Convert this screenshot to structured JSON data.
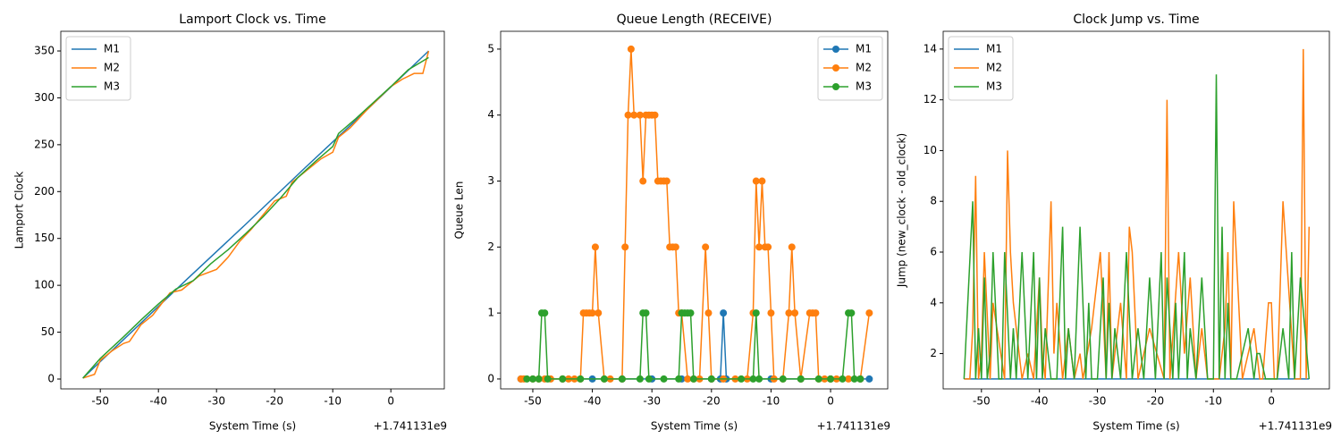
{
  "chart_data": [
    {
      "type": "line",
      "title": "Lamport Clock vs. Time",
      "xlabel": "System Time (s)",
      "ylabel": "Lamport Clock",
      "x_offset_label": "+1.741131e9",
      "xlim": [
        -56.8,
        9.2
      ],
      "ylim": [
        -10.5,
        371
      ],
      "xticks": [
        -50,
        -40,
        -30,
        -20,
        -10,
        0
      ],
      "yticks": [
        0,
        50,
        100,
        150,
        200,
        250,
        300,
        350
      ],
      "legend": "upper left",
      "series": [
        {
          "name": "M1",
          "color": "#1f77b4",
          "x": [
            -53,
            -45,
            -35,
            -25,
            -15,
            -5,
            6.5
          ],
          "values": [
            1,
            48,
            107,
            165,
            224,
            282,
            350
          ]
        },
        {
          "name": "M2",
          "color": "#ff7f0e",
          "x": [
            -53,
            -51,
            -50,
            -48,
            -46,
            -45,
            -43,
            -41,
            -38,
            -36,
            -33,
            -30,
            -28,
            -26,
            -24,
            -22,
            -20,
            -18,
            -17,
            -15,
            -12,
            -10,
            -9,
            -7,
            -4,
            0,
            2,
            4,
            5.5,
            6.5
          ],
          "values": [
            1,
            5,
            20,
            30,
            38,
            40,
            58,
            68,
            92,
            95,
            110,
            117,
            130,
            147,
            160,
            175,
            190,
            195,
            210,
            220,
            235,
            242,
            258,
            268,
            288,
            312,
            320,
            326,
            326,
            350
          ]
        },
        {
          "name": "M3",
          "color": "#2ca02c",
          "x": [
            -53,
            -50,
            -46,
            -43,
            -40,
            -37,
            -34,
            -31,
            -28,
            -25,
            -22,
            -19,
            -16,
            -13,
            -10,
            -9,
            -6,
            -3,
            0,
            3,
            6.5
          ],
          "values": [
            1,
            22,
            45,
            63,
            80,
            96,
            105,
            123,
            138,
            155,
            173,
            193,
            215,
            232,
            248,
            262,
            278,
            295,
            312,
            330,
            343
          ]
        }
      ]
    },
    {
      "type": "line",
      "marker": "o",
      "title": "Queue Length (RECEIVE)",
      "xlabel": "System Time (s)",
      "ylabel": "Queue Len",
      "x_offset_label": "+1.741131e9",
      "xlim": [
        -55.4,
        9.6
      ],
      "ylim": [
        -0.15,
        5.27
      ],
      "xticks": [
        -50,
        -40,
        -30,
        -20,
        -10,
        0
      ],
      "yticks": [
        0,
        1,
        2,
        3,
        4,
        5
      ],
      "legend": "upper right",
      "series": [
        {
          "name": "M1",
          "color": "#1f77b4",
          "x": [
            -52,
            -45,
            -40,
            -35,
            -30,
            -25,
            -20,
            -18.5,
            -18,
            -17.5,
            -10,
            -5,
            0,
            5,
            6.5
          ],
          "values": [
            0,
            0,
            0,
            0,
            0,
            0,
            0,
            0,
            1,
            0,
            0,
            0,
            0,
            0,
            0
          ]
        },
        {
          "name": "M2",
          "color": "#ff7f0e",
          "x": [
            -52,
            -51.5,
            -50,
            -49,
            -48,
            -47,
            -45,
            -44,
            -43,
            -42,
            -41.5,
            -41,
            -40.5,
            -40,
            -39.5,
            -39,
            -38,
            -37,
            -35,
            -34.5,
            -34,
            -33.5,
            -33,
            -32,
            -31.5,
            -31,
            -30.5,
            -30,
            -29.5,
            -29,
            -28.5,
            -28,
            -27.5,
            -27,
            -26.5,
            -26,
            -25.5,
            -25,
            -24,
            -23,
            -22,
            -21,
            -20.5,
            -20,
            -18,
            -16,
            -14,
            -13,
            -12.5,
            -12,
            -11.5,
            -11,
            -10.5,
            -10,
            -9.5,
            -8,
            -7,
            -6.5,
            -6,
            -5,
            -3.5,
            -3,
            -2.5,
            -2,
            -1,
            0,
            1,
            3,
            5,
            6.5
          ],
          "values": [
            0,
            0,
            0,
            0,
            0,
            0,
            0,
            0,
            0,
            0,
            1,
            1,
            1,
            1,
            2,
            1,
            0,
            0,
            0,
            2,
            4,
            5,
            4,
            4,
            3,
            4,
            4,
            4,
            4,
            3,
            3,
            3,
            3,
            2,
            2,
            2,
            1,
            1,
            0,
            0,
            0,
            2,
            1,
            0,
            0,
            0,
            0,
            1,
            3,
            2,
            3,
            2,
            2,
            1,
            0,
            0,
            1,
            2,
            1,
            0,
            1,
            1,
            1,
            0,
            0,
            0,
            0,
            0,
            0,
            1
          ]
        },
        {
          "name": "M3",
          "color": "#2ca02c",
          "x": [
            -51,
            -50,
            -49,
            -48.5,
            -48,
            -47.5,
            -45,
            -42,
            -38,
            -35,
            -32,
            -31.5,
            -31,
            -30.5,
            -28,
            -25.5,
            -25,
            -24.5,
            -24,
            -23.5,
            -23,
            -20,
            -15,
            -13,
            -12.5,
            -12,
            -8,
            -5,
            -2,
            0,
            2,
            3,
            3.5,
            4,
            5
          ],
          "values": [
            0,
            0,
            0,
            1,
            1,
            0,
            0,
            0,
            0,
            0,
            0,
            1,
            1,
            0,
            0,
            0,
            1,
            1,
            1,
            1,
            0,
            0,
            0,
            0,
            1,
            0,
            0,
            0,
            0,
            0,
            0,
            1,
            1,
            0,
            0
          ]
        }
      ]
    },
    {
      "type": "line",
      "title": "Clock Jump vs. Time",
      "xlabel": "System Time (s)",
      "ylabel": "Jump (new_clock - old_clock)",
      "x_offset_label": "+1.741131e9",
      "xlim": [
        -56.6,
        10
      ],
      "ylim": [
        0.61,
        14.7
      ],
      "xticks": [
        -50,
        -40,
        -30,
        -20,
        -10,
        0
      ],
      "yticks": [
        2,
        4,
        6,
        8,
        10,
        12,
        14
      ],
      "legend": "upper left",
      "series": [
        {
          "name": "M1",
          "color": "#1f77b4",
          "x": [
            -53,
            6.5
          ],
          "values": [
            1,
            1
          ]
        },
        {
          "name": "M2",
          "color": "#ff7f0e",
          "x": [
            -53,
            -52,
            -51.5,
            -51,
            -50.5,
            -50,
            -49.5,
            -48.5,
            -48,
            -46,
            -45.5,
            -45,
            -44.5,
            -43,
            -42,
            -41,
            -40,
            -39.5,
            -39,
            -38,
            -37.5,
            -37,
            -36,
            -35,
            -34,
            -33,
            -32.5,
            -31,
            -30,
            -29.5,
            -28.5,
            -28,
            -27.5,
            -26,
            -25,
            -24.5,
            -24,
            -23,
            -21,
            -18.5,
            -18,
            -17.5,
            -16,
            -15,
            -14,
            -13,
            -12,
            -11,
            -10,
            -9,
            -8,
            -7.5,
            -7,
            -6.5,
            -5,
            -4,
            -3,
            -2,
            -1.5,
            -0.5,
            0,
            0.5,
            1,
            2,
            4,
            5,
            5.5,
            6,
            6.5
          ],
          "values": [
            1,
            1,
            3,
            9,
            1,
            2,
            6,
            1,
            4,
            1,
            10,
            6,
            4,
            1,
            2,
            1,
            5,
            2,
            1,
            8,
            2,
            4,
            1,
            3,
            1,
            2,
            1,
            3,
            5,
            6,
            1,
            6,
            1,
            4,
            1,
            7,
            6,
            1,
            3,
            1,
            12,
            1,
            6,
            2,
            5,
            1,
            3,
            1,
            1,
            1,
            3,
            6,
            1,
            8,
            1,
            2,
            3,
            1,
            1,
            4,
            4,
            1,
            1,
            8,
            1,
            1,
            14,
            1,
            7
          ]
        },
        {
          "name": "M3",
          "color": "#2ca02c",
          "x": [
            -53,
            -51.5,
            -51,
            -50.5,
            -50,
            -49.5,
            -49,
            -48.5,
            -48,
            -47,
            -46.5,
            -46,
            -45,
            -44.5,
            -44,
            -43,
            -42,
            -41,
            -40.5,
            -40,
            -39.5,
            -39,
            -38,
            -37,
            -36,
            -35.5,
            -35,
            -34,
            -33,
            -32,
            -31.5,
            -31,
            -30,
            -29,
            -28.5,
            -28,
            -27.5,
            -27,
            -26,
            -25,
            -24,
            -23,
            -22,
            -21,
            -20,
            -19,
            -18.5,
            -18,
            -17,
            -16.5,
            -16,
            -15,
            -14.5,
            -14,
            -13,
            -12,
            -11,
            -10,
            -9.5,
            -9,
            -8.5,
            -8,
            -7.5,
            -7,
            -6,
            -5,
            -4,
            -3,
            -2.5,
            -2,
            -1,
            0,
            1,
            2,
            3,
            3.5,
            4,
            5,
            6.5
          ],
          "values": [
            1,
            8,
            1,
            3,
            1,
            5,
            1,
            2,
            6,
            1,
            1,
            6,
            1,
            3,
            1,
            6,
            1,
            6,
            1,
            5,
            1,
            3,
            1,
            1,
            7,
            1,
            3,
            1,
            7,
            1,
            4,
            1,
            1,
            5,
            1,
            4,
            1,
            3,
            1,
            6,
            1,
            3,
            1,
            5,
            1,
            6,
            1,
            5,
            1,
            4,
            1,
            6,
            1,
            3,
            1,
            5,
            1,
            1,
            13,
            1,
            7,
            1,
            4,
            1,
            1,
            2,
            3,
            1,
            2,
            2,
            1,
            1,
            1,
            3,
            1,
            6,
            1,
            5,
            1
          ]
        }
      ]
    }
  ]
}
